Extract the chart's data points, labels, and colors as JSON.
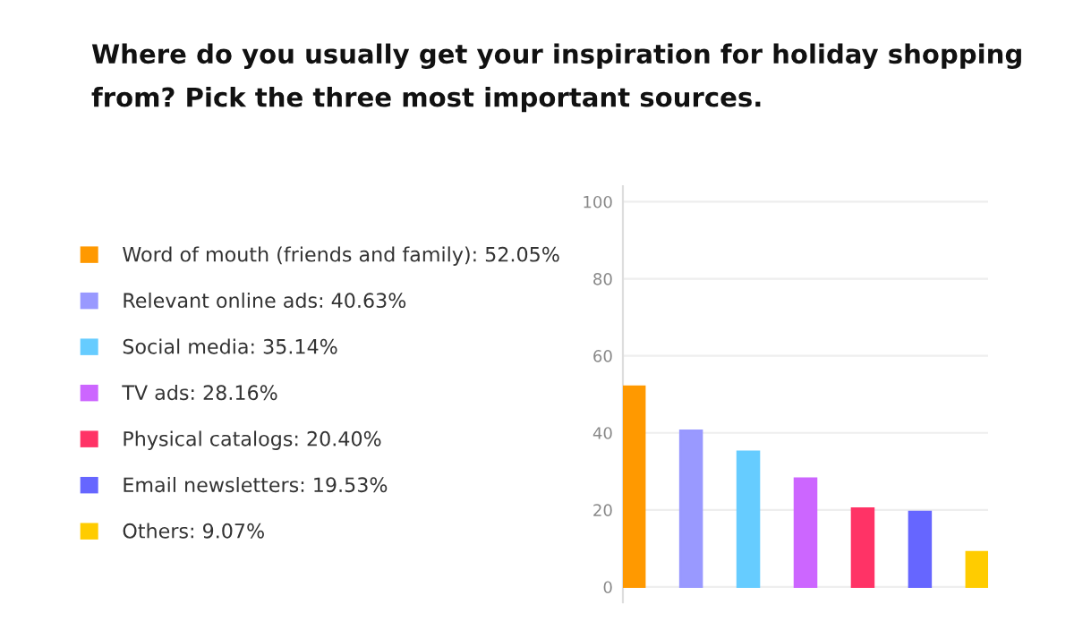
{
  "chart_data": {
    "type": "bar",
    "title": "Where do you usually get your inspiration for holiday shopping from? Pick the three most important sources.",
    "categories": [
      null,
      null,
      null,
      null,
      null,
      null,
      null
    ],
    "series": [
      {
        "name": "Word of mouth (friends and family): 52.05%",
        "color": "#ff9900",
        "values": [
          52.05,
          null,
          null,
          null,
          null,
          null,
          null
        ]
      },
      {
        "name": "Relevant online ads: 40.63%",
        "color": "#9999ff",
        "values": [
          null,
          40.63,
          null,
          null,
          null,
          null,
          null
        ]
      },
      {
        "name": "Social media: 35.14%",
        "color": "#66ccff",
        "values": [
          null,
          null,
          35.14,
          null,
          null,
          null,
          null
        ]
      },
      {
        "name": "TV ads: 28.16%",
        "color": "#cc66ff",
        "values": [
          null,
          null,
          null,
          28.16,
          null,
          null,
          null
        ]
      },
      {
        "name": "Physical catalogs: 20.40%",
        "color": "#ff3366",
        "values": [
          null,
          null,
          null,
          null,
          20.4,
          null,
          null
        ]
      },
      {
        "name": "Email newsletters: 19.53%",
        "color": "#6666ff",
        "values": [
          null,
          null,
          null,
          null,
          null,
          19.53,
          null
        ]
      },
      {
        "name": "Others: 9.07%",
        "color": "#ffcc00",
        "values": [
          null,
          null,
          null,
          null,
          null,
          null,
          9.07
        ]
      }
    ],
    "ylim": [
      -4,
      104
    ],
    "yticks": [
      0,
      20,
      40,
      60,
      80,
      100
    ],
    "grid": "y",
    "legend": "left"
  }
}
